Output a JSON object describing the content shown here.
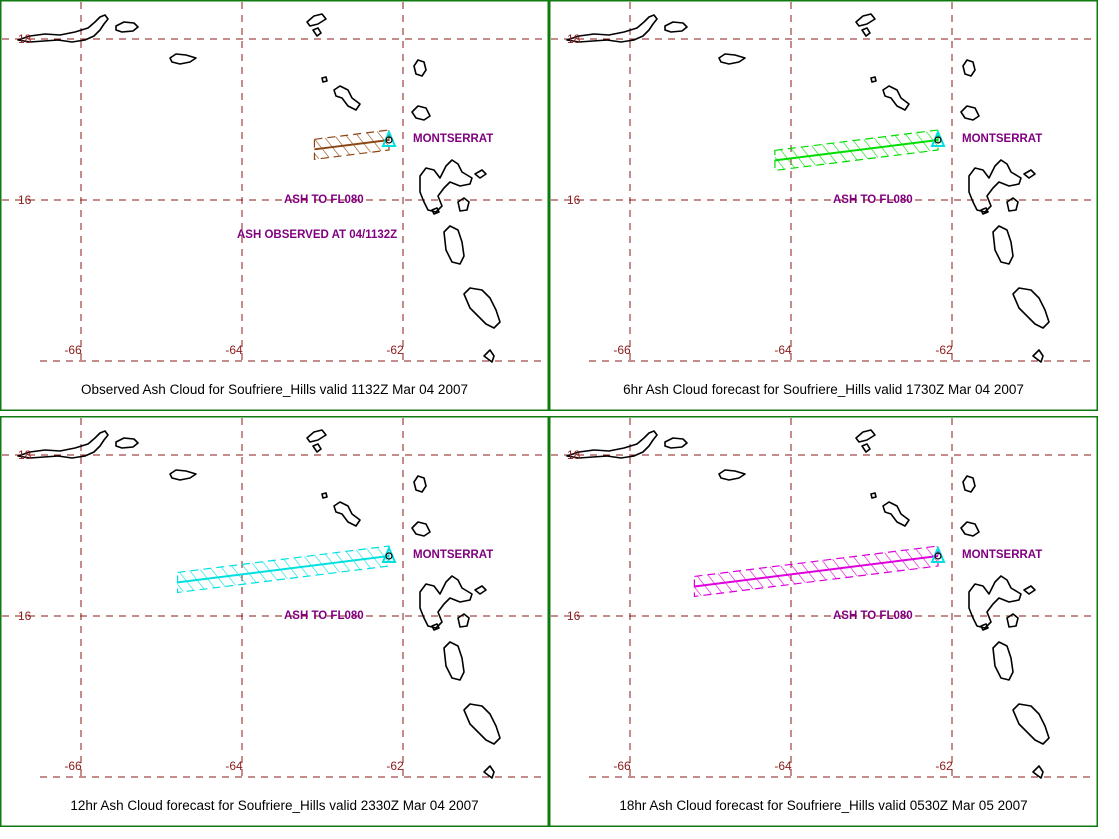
{
  "colors": {
    "frame": "#0f7a0f",
    "grid": "#8b1a1a",
    "label": "#800080",
    "volcano": "#00e0e0"
  },
  "axes": {
    "lon_labels": [
      "-66",
      "-64",
      "-62"
    ],
    "lat_labels": [
      "18",
      "16"
    ]
  },
  "place_label": "MONTSERRAT",
  "panels": [
    {
      "caption": "Observed Ash Cloud for Soufriere_Hills valid 1132Z Mar 04 2007",
      "ash_label": "ASH TO FL080",
      "extra_label": "ASH OBSERVED AT 04/1132Z",
      "cloud_color": "#8b4513",
      "cloud_west_lon": -63.1
    },
    {
      "caption": "6hr Ash Cloud forecast for Soufriere_Hills valid 1730Z Mar 04 2007",
      "ash_label": "ASH TO FL080",
      "extra_label": "",
      "cloud_color": "#00dd00",
      "cloud_west_lon": -64.2
    },
    {
      "caption": "12hr Ash Cloud forecast for Soufriere_Hills valid 2330Z Mar 04 2007",
      "ash_label": "ASH TO FL080",
      "extra_label": "",
      "cloud_color": "#00e0e0",
      "cloud_west_lon": -64.8
    },
    {
      "caption": "18hr Ash Cloud forecast for Soufriere_Hills valid 0530Z Mar 05 2007",
      "ash_label": "ASH TO FL080",
      "extra_label": "",
      "cloud_color": "#dd00dd",
      "cloud_west_lon": -65.2
    }
  ]
}
